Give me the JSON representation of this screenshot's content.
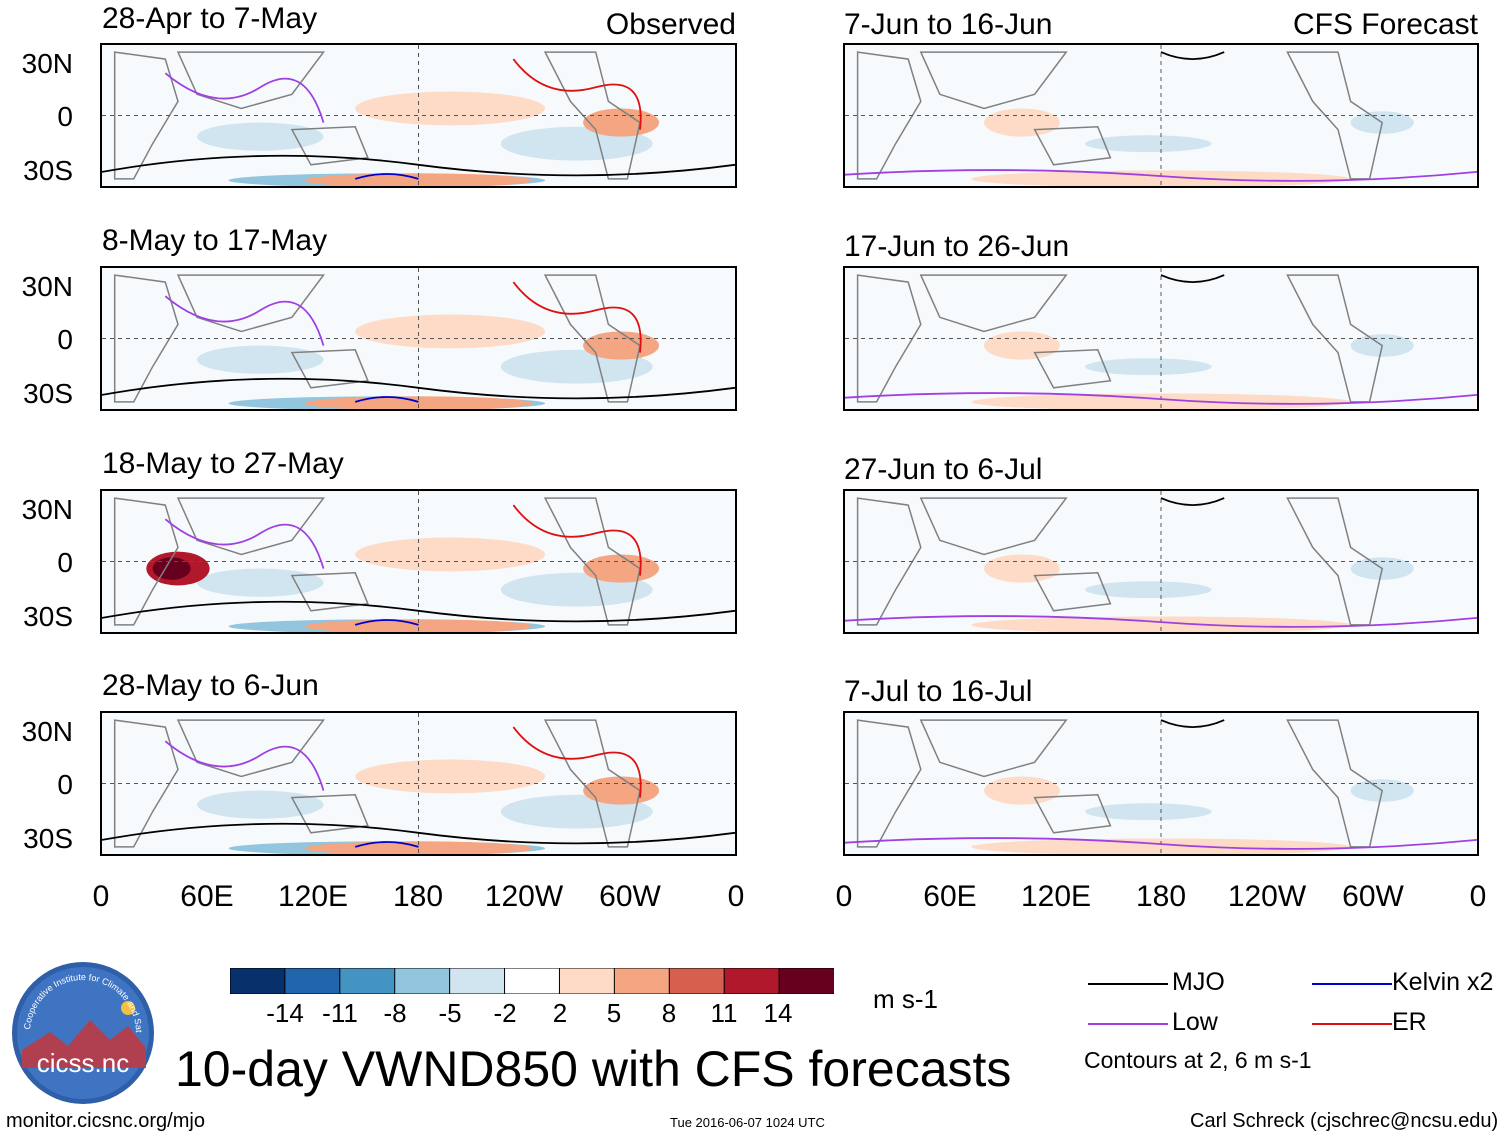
{
  "title": "10-day VWND850 with CFS forecasts",
  "headers": {
    "observed": "Observed",
    "forecast": "CFS Forecast"
  },
  "observed_panels": [
    {
      "period": "28-Apr to 7-May"
    },
    {
      "period": "8-May to 17-May"
    },
    {
      "period": "18-May to 27-May"
    },
    {
      "period": "28-May to 6-Jun"
    }
  ],
  "forecast_panels": [
    {
      "period": "7-Jun to 16-Jun"
    },
    {
      "period": "17-Jun to 26-Jun"
    },
    {
      "period": "27-Jun to 6-Jul"
    },
    {
      "period": "7-Jul to 16-Jul"
    }
  ],
  "y_axis_labels": [
    "30N",
    "0",
    "30S"
  ],
  "x_axis_labels": [
    "0",
    "60E",
    "120E",
    "180",
    "120W",
    "60W",
    "0"
  ],
  "colorbar": {
    "labels": [
      "-14",
      "-11",
      "-8",
      "-5",
      "-2",
      "2",
      "5",
      "8",
      "11",
      "14"
    ],
    "units": "m s-1",
    "colors": [
      "#08306b",
      "#2166ac",
      "#4393c3",
      "#92c5de",
      "#d1e5f0",
      "#ffffff",
      "#fddbc7",
      "#f4a582",
      "#d6604d",
      "#b2182b",
      "#67001f"
    ]
  },
  "legend": {
    "items": [
      {
        "label": "MJO",
        "color": "#000000"
      },
      {
        "label": "Kelvin x2",
        "color": "#0000cc"
      },
      {
        "label": "Low",
        "color": "#a040e0"
      },
      {
        "label": "ER",
        "color": "#dd1111"
      }
    ],
    "note": "Contours at 2, 6 m s-1"
  },
  "logo": {
    "text": "cicss.nc",
    "ring_text": "Cooperative Institute for Climate and Satellites"
  },
  "footer": {
    "url": "monitor.cicsnc.org/mjo",
    "timestamp": "Tue 2016-06-07 1024 UTC",
    "author": "Carl Schreck (cjschrec@ncsu.edu)"
  }
}
